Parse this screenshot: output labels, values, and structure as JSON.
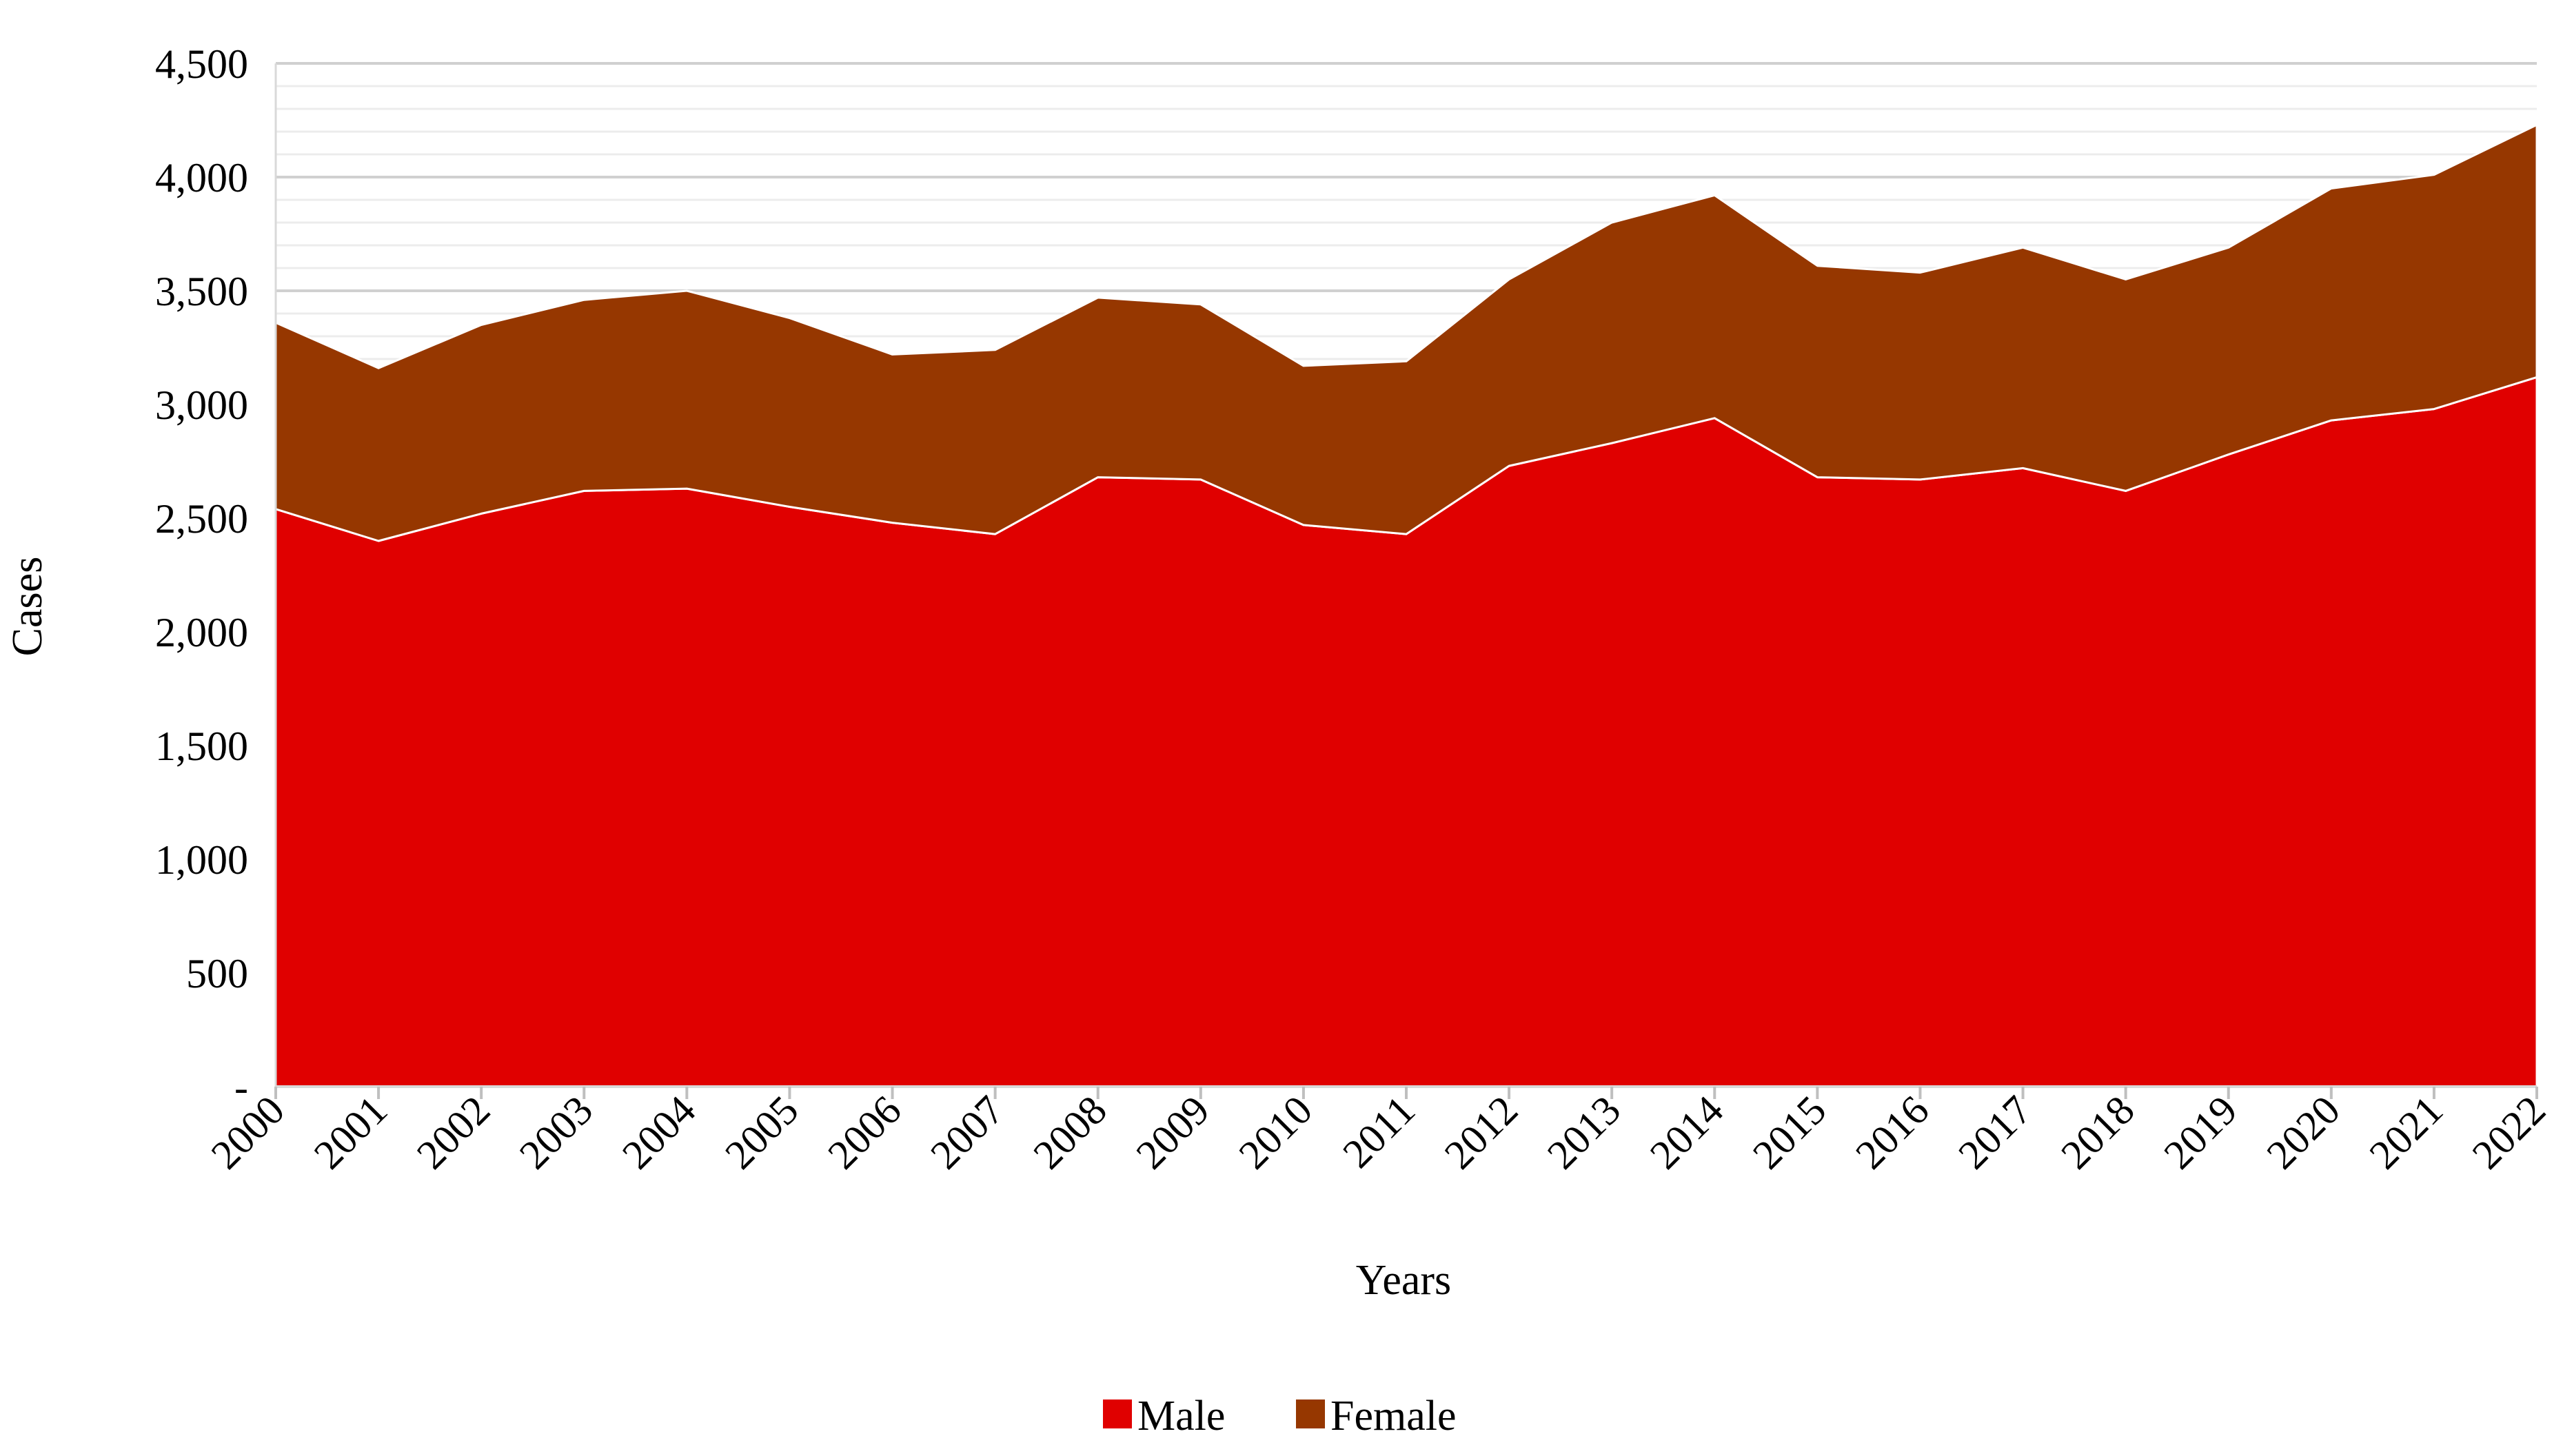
{
  "chart_data": {
    "type": "area",
    "stacked": true,
    "title": "",
    "xlabel": "Years",
    "ylabel": "Cases",
    "x": [
      "2000",
      "2001",
      "2002",
      "2003",
      "2004",
      "2005",
      "2006",
      "2007",
      "2008",
      "2009",
      "2010",
      "2011",
      "2012",
      "2013",
      "2014",
      "2015",
      "2016",
      "2017",
      "2018",
      "2019",
      "2020",
      "2021",
      "2022"
    ],
    "ylim": [
      0,
      4500
    ],
    "yticks": [
      0,
      500,
      1000,
      1500,
      2000,
      2500,
      3000,
      3500,
      4000,
      4500
    ],
    "ytick_labels": [
      "-",
      "500",
      "1,000",
      "1,500",
      "2,000",
      "2,500",
      "3,000",
      "3,500",
      "4,000",
      "4,500"
    ],
    "grid": true,
    "legend_position": "bottom-center",
    "series": [
      {
        "name": "Male",
        "color": "#E00000",
        "values": [
          2540,
          2400,
          2520,
          2620,
          2630,
          2550,
          2480,
          2430,
          2680,
          2670,
          2470,
          2430,
          2730,
          2830,
          2940,
          2680,
          2670,
          2720,
          2620,
          2780,
          2930,
          2980,
          3120
        ]
      },
      {
        "name": "Female",
        "color": "#963700",
        "values": [
          820,
          760,
          830,
          840,
          870,
          830,
          740,
          810,
          790,
          770,
          700,
          760,
          820,
          970,
          980,
          930,
          910,
          970,
          930,
          910,
          1020,
          1030,
          1110
        ]
      }
    ]
  }
}
